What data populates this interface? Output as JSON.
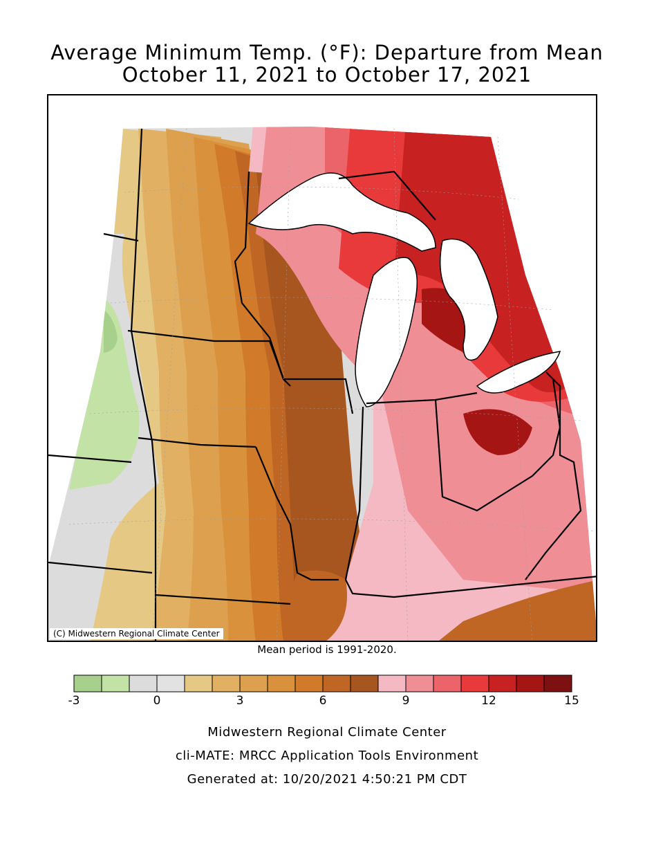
{
  "title_line1": "Average Minimum Temp. (°F): Departure from Mean",
  "title_line2": "October 11, 2021 to October 17, 2021",
  "copyright": "(C) Midwestern Regional Climate Center",
  "mean_period": "Mean period is 1991-2020.",
  "legend": {
    "colors": [
      "#a8d08d",
      "#c3e2a6",
      "#dcdcdc",
      "#e2e2e2",
      "#e6c885",
      "#e1b063",
      "#dda04f",
      "#d9913c",
      "#d17a2a",
      "#bf6624",
      "#a8561f",
      "#f4b9c3",
      "#f08e96",
      "#eb646a",
      "#e83a3a",
      "#c82121",
      "#a51514",
      "#7d1010"
    ],
    "tick_values": [
      "-3",
      "0",
      "3",
      "6",
      "9",
      "12",
      "15"
    ],
    "tick_positions": [
      0,
      3,
      6,
      9,
      12,
      15,
      18
    ]
  },
  "footer": {
    "line1": "Midwestern Regional Climate Center",
    "line2": "cli-MATE: MRCC Application Tools Environment",
    "line3": "Generated at: 10/20/2021 4:50:21 PM CDT"
  }
}
